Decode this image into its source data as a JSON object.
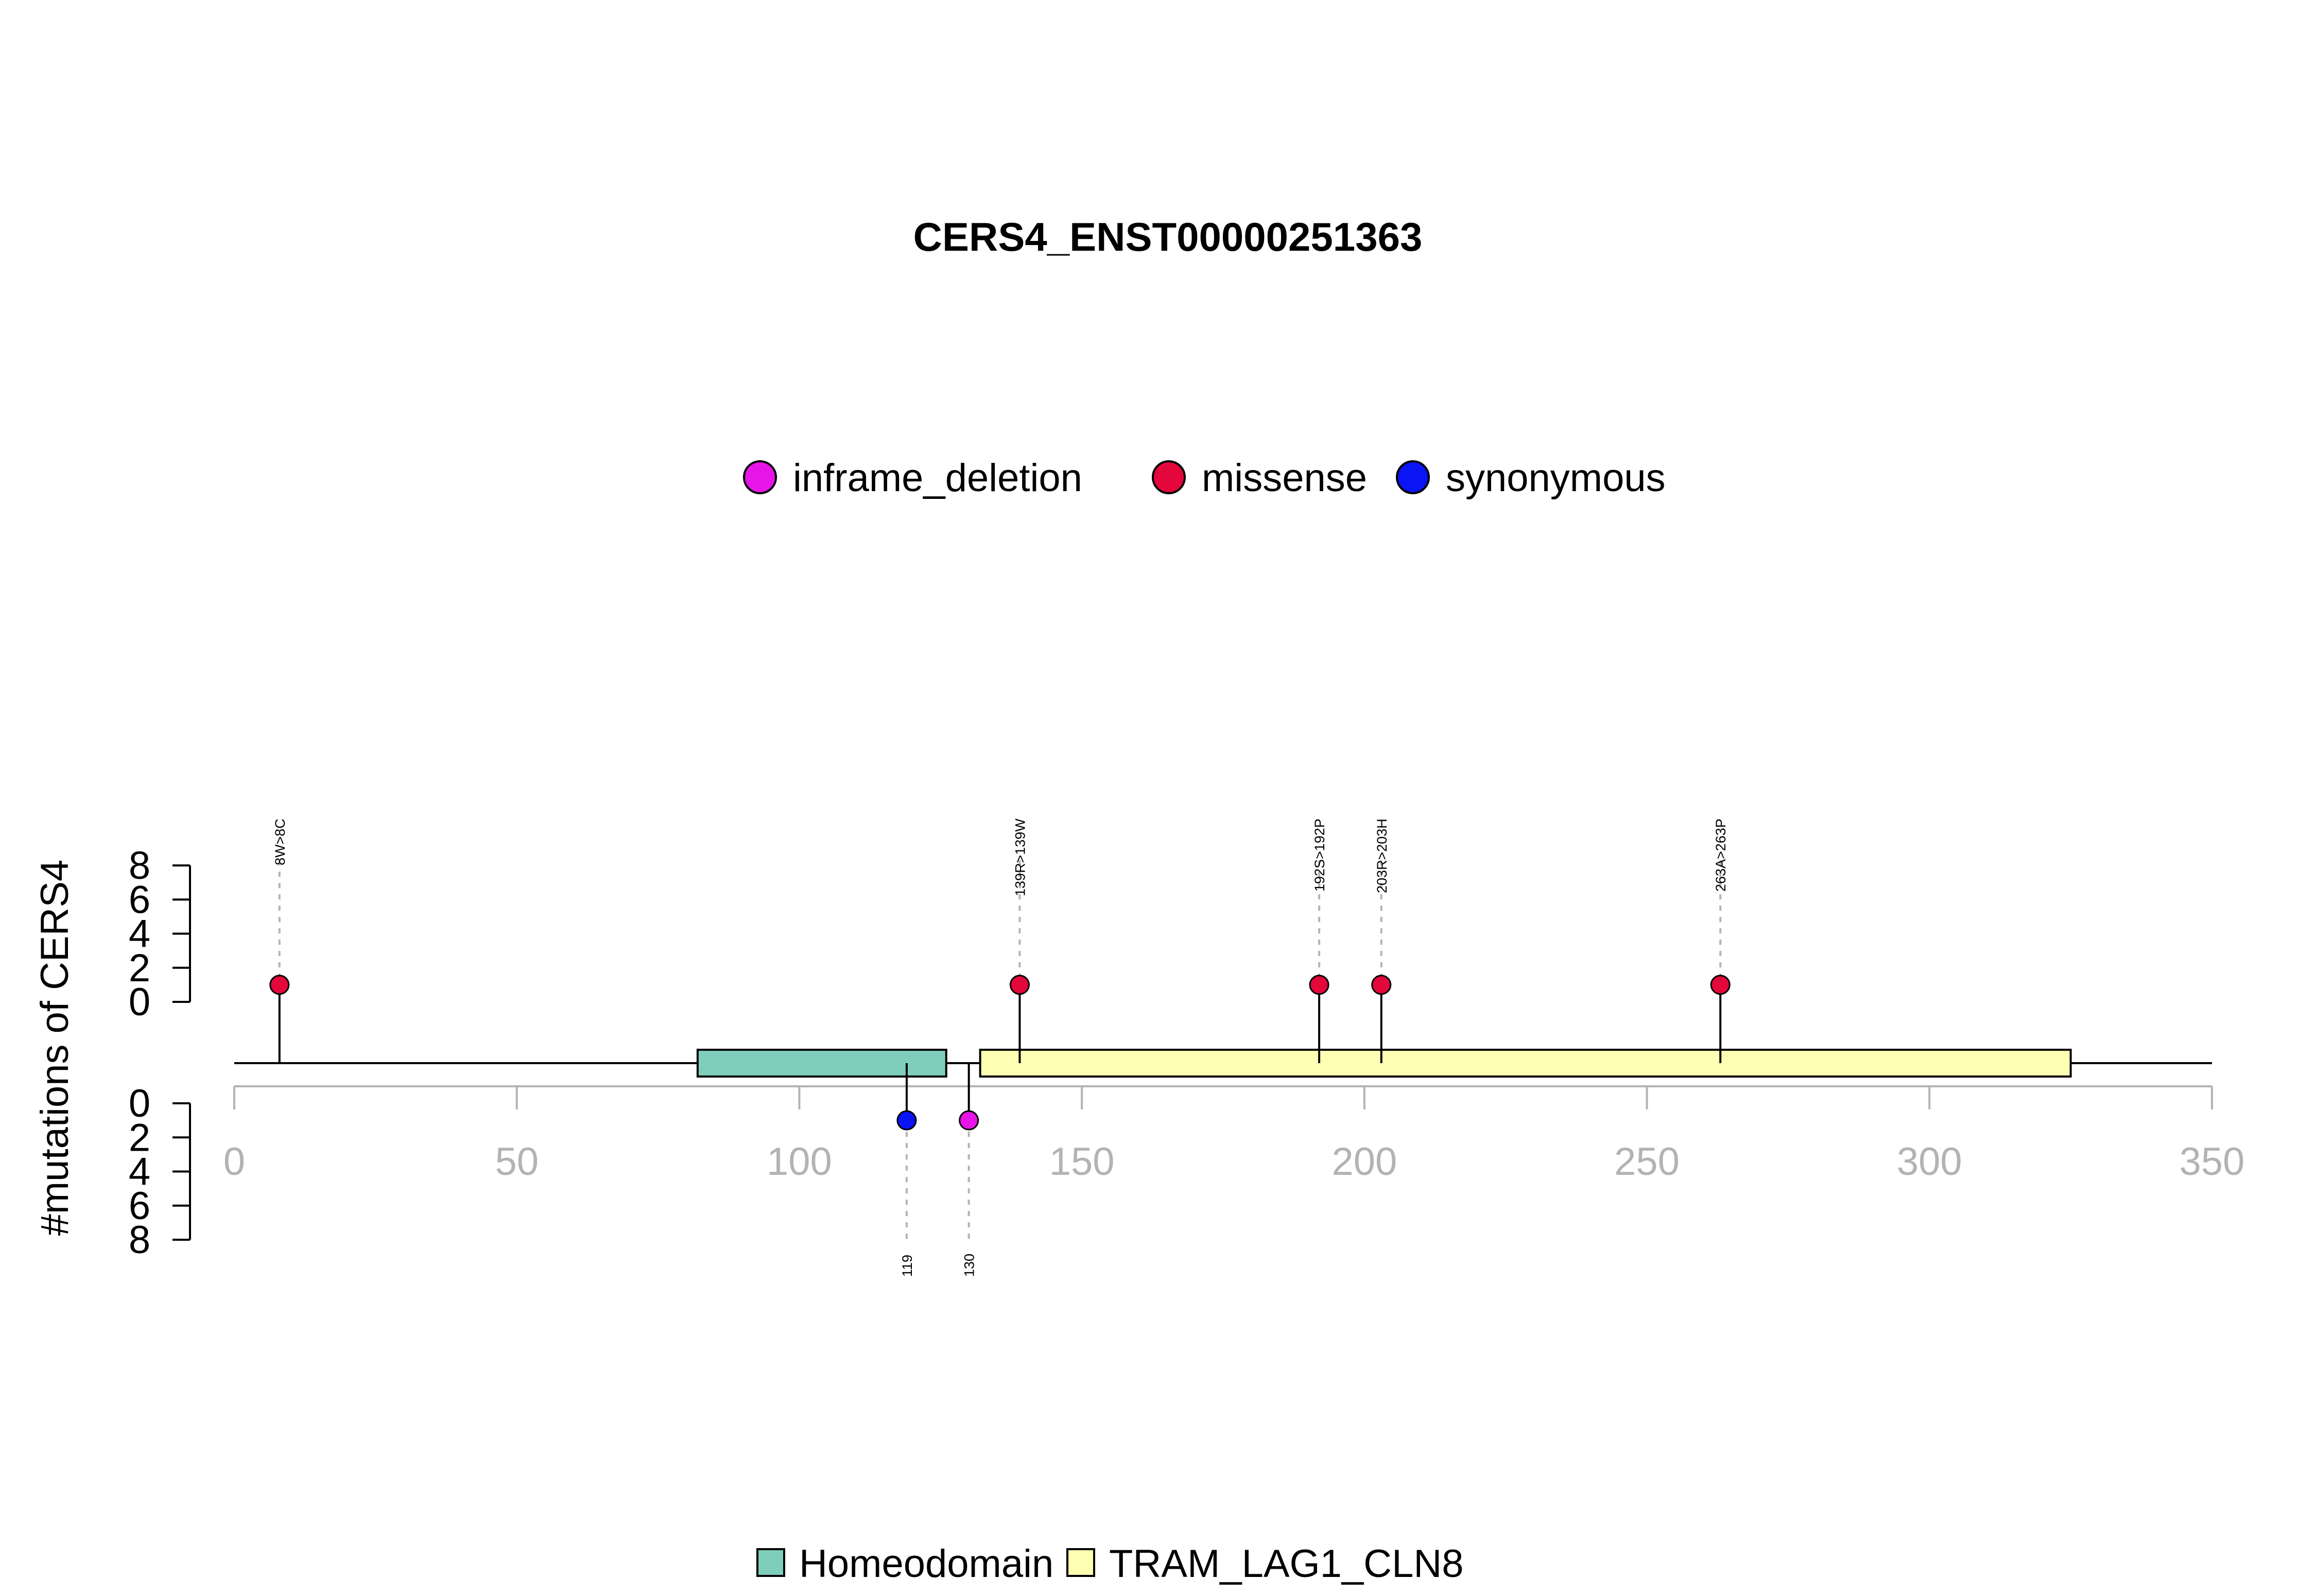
{
  "chart_data": {
    "type": "lollipop",
    "title": "CERS4_ENST00000251363",
    "ylabel": "#mutations of CERS4",
    "xlim": [
      0,
      350
    ],
    "x_ticks": [
      0,
      50,
      100,
      150,
      200,
      250,
      300,
      350
    ],
    "y_ticks": [
      0,
      2,
      4,
      6,
      8
    ],
    "ylim": [
      0,
      8
    ],
    "legend_mutations": {
      "placement": "top-center",
      "items": [
        {
          "name": "inframe_deletion",
          "color": "#e815e8"
        },
        {
          "name": "missense",
          "color": "#e3073c"
        },
        {
          "name": "synonymous",
          "color": "#0a14f5"
        }
      ]
    },
    "legend_domains": {
      "placement": "bottom-center",
      "items": [
        {
          "name": "Homeodomain",
          "color": "#7fcdbb"
        },
        {
          "name": "TRAM_LAG1_CLN8",
          "color": "#ffffb3"
        }
      ]
    },
    "domains": [
      {
        "name": "Homeodomain",
        "start": 82,
        "end": 126,
        "color": "#7fcdbb"
      },
      {
        "name": "TRAM_LAG1_CLN8",
        "start": 132,
        "end": 325,
        "color": "#ffffb3"
      }
    ],
    "mutations_top": [
      {
        "position": 8,
        "count": 1,
        "type": "missense",
        "label": "8W>8C"
      },
      {
        "position": 139,
        "count": 1,
        "type": "missense",
        "label": "139R>139W"
      },
      {
        "position": 192,
        "count": 1,
        "type": "missense",
        "label": "192S>192P"
      },
      {
        "position": 203,
        "count": 1,
        "type": "missense",
        "label": "203R>203H"
      },
      {
        "position": 263,
        "count": 1,
        "type": "missense",
        "label": "263A>263P"
      }
    ],
    "mutations_bottom": [
      {
        "position": 119,
        "count": 1,
        "type": "synonymous",
        "label": "119"
      },
      {
        "position": 130,
        "count": 1,
        "type": "inframe_deletion",
        "label": "130"
      }
    ],
    "colors": {
      "inframe_deletion": "#e815e8",
      "missense": "#e3073c",
      "synonymous": "#0a14f5",
      "axis_gray": "#b3b3b3",
      "dashed_gray": "#b3b3b3"
    }
  }
}
